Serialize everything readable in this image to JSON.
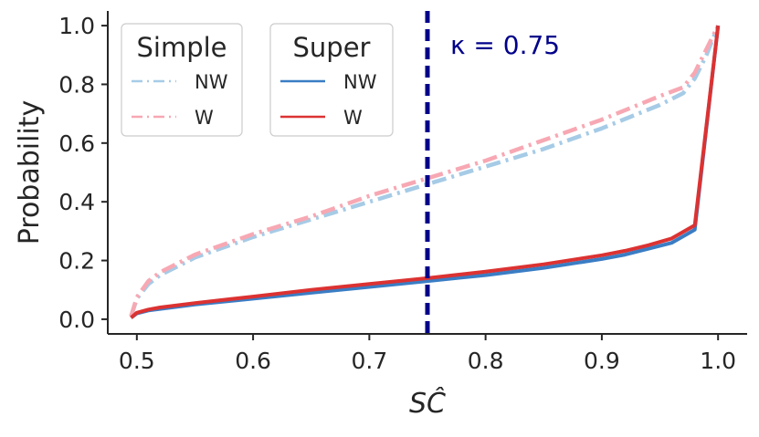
{
  "chart_data": {
    "type": "line",
    "xlabel": "SĈ",
    "ylabel": "Probability",
    "xlim": [
      0.475,
      1.025
    ],
    "ylim": [
      -0.05,
      1.05
    ],
    "xticks": [
      "0.5",
      "0.6",
      "0.7",
      "0.8",
      "0.9",
      "1.0"
    ],
    "yticks": [
      "0.0",
      "0.2",
      "0.4",
      "0.6",
      "0.8",
      "1.0"
    ],
    "grid": false,
    "vline": {
      "x": 0.75,
      "label": "κ = 0.75",
      "color": "#00008b",
      "style": "dashed"
    },
    "legends": [
      {
        "title": "Simple",
        "entries": [
          {
            "label": "NW",
            "color": "#a6cbe6",
            "style": "dashdot"
          },
          {
            "label": "W",
            "color": "#f7a8b3",
            "style": "dashdot"
          }
        ]
      },
      {
        "title": "Super",
        "entries": [
          {
            "label": "NW",
            "color": "#3a7dc4",
            "style": "solid"
          },
          {
            "label": "W",
            "color": "#dc3232",
            "style": "solid"
          }
        ]
      }
    ],
    "series": [
      {
        "group": "Simple",
        "name": "NW",
        "color": "#a6cbe6",
        "style": "dashdot",
        "x": [
          0.495,
          0.5,
          0.51,
          0.52,
          0.55,
          0.6,
          0.65,
          0.7,
          0.75,
          0.8,
          0.85,
          0.9,
          0.95,
          0.97,
          0.98,
          0.99,
          1.0
        ],
        "y": [
          0.01,
          0.07,
          0.12,
          0.15,
          0.21,
          0.28,
          0.34,
          0.4,
          0.46,
          0.52,
          0.58,
          0.65,
          0.73,
          0.77,
          0.82,
          0.9,
          1.0
        ]
      },
      {
        "group": "Simple",
        "name": "W",
        "color": "#f7a8b3",
        "style": "dashdot",
        "x": [
          0.495,
          0.5,
          0.51,
          0.52,
          0.55,
          0.6,
          0.65,
          0.7,
          0.75,
          0.8,
          0.85,
          0.9,
          0.95,
          0.97,
          0.98,
          0.99,
          1.0
        ],
        "y": [
          0.01,
          0.075,
          0.13,
          0.16,
          0.22,
          0.29,
          0.35,
          0.42,
          0.48,
          0.54,
          0.61,
          0.68,
          0.76,
          0.79,
          0.84,
          0.92,
          1.0
        ]
      },
      {
        "group": "Super",
        "name": "NW",
        "color": "#3a7dc4",
        "style": "solid",
        "x": [
          0.495,
          0.5,
          0.51,
          0.52,
          0.55,
          0.6,
          0.65,
          0.7,
          0.75,
          0.8,
          0.85,
          0.9,
          0.92,
          0.94,
          0.96,
          0.98,
          1.0
        ],
        "y": [
          0.005,
          0.02,
          0.03,
          0.035,
          0.05,
          0.07,
          0.09,
          0.11,
          0.13,
          0.15,
          0.175,
          0.205,
          0.22,
          0.24,
          0.26,
          0.305,
          1.0
        ]
      },
      {
        "group": "Super",
        "name": "W",
        "color": "#dc3232",
        "style": "solid",
        "x": [
          0.495,
          0.5,
          0.51,
          0.52,
          0.55,
          0.6,
          0.65,
          0.7,
          0.75,
          0.8,
          0.85,
          0.9,
          0.92,
          0.94,
          0.96,
          0.98,
          1.0
        ],
        "y": [
          0.005,
          0.022,
          0.033,
          0.04,
          0.055,
          0.077,
          0.1,
          0.12,
          0.14,
          0.162,
          0.187,
          0.218,
          0.233,
          0.252,
          0.275,
          0.32,
          1.0
        ]
      }
    ]
  }
}
